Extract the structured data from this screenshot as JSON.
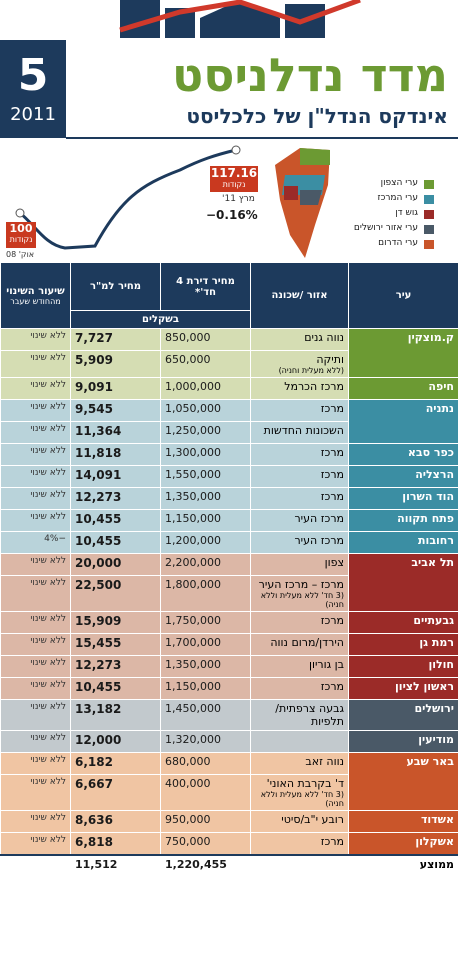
{
  "header": {
    "issue": "5",
    "year": "2011",
    "title": "מדד נדלניסט",
    "subtitle": "אינדקס הנדל\"ן של כלכליסט"
  },
  "index_chart": {
    "start": {
      "value": "100",
      "unit": "נקודות",
      "date": "אוק' 08"
    },
    "end": {
      "value": "117.16",
      "unit": "נקודות",
      "date": "מרץ 11'"
    },
    "change": "−0.16%"
  },
  "legend": [
    "ערי הצפון",
    "ערי המרכז",
    "גוש דן",
    "ערי אזור ירושלים",
    "ערי הדרום"
  ],
  "table": {
    "columns": {
      "city": "עיר",
      "area": "אזור /שכונה",
      "price": "מחיר דירת 4 חד'*",
      "sqm": "מחיר למ\"ר",
      "change": "שיעור השינוי",
      "change_note": "מהחודש שעבר"
    },
    "unit": "בשקלים",
    "groups": [
      {
        "cities": [
          {
            "name": "ק.מוצקין",
            "rows": [
              {
                "area": "נווה גנים",
                "price": "850,000",
                "sqm": "7,727",
                "change": "ללא שינוי"
              },
              {
                "area": "ותיקה",
                "area_note": "(ללא מעלית וחניה)",
                "price": "650,000",
                "sqm": "5,909",
                "change": "ללא שינוי"
              }
            ]
          },
          {
            "name": "חיפה",
            "rows": [
              {
                "area": "מרכז הכרמל",
                "price": "1,000,000",
                "sqm": "9,091",
                "change": "ללא שינוי"
              }
            ]
          }
        ]
      },
      {
        "cities": [
          {
            "name": "נתניה",
            "rows": [
              {
                "area": "מרכז",
                "price": "1,050,000",
                "sqm": "9,545",
                "change": "ללא שינוי"
              },
              {
                "area": "השכונות החדשות",
                "price": "1,250,000",
                "sqm": "11,364",
                "change": "ללא שינוי"
              }
            ]
          },
          {
            "name": "כפר סבא",
            "rows": [
              {
                "area": "מרכז",
                "price": "1,300,000",
                "sqm": "11,818",
                "change": "ללא שינוי"
              }
            ]
          },
          {
            "name": "הרצליה",
            "rows": [
              {
                "area": "מרכז",
                "price": "1,550,000",
                "sqm": "14,091",
                "change": "ללא שינוי"
              }
            ]
          },
          {
            "name": "הוד השרון",
            "rows": [
              {
                "area": "מרכז",
                "price": "1,350,000",
                "sqm": "12,273",
                "change": "ללא שינוי"
              }
            ]
          },
          {
            "name": "פתח תקווה",
            "rows": [
              {
                "area": "מרכז העיר",
                "price": "1,150,000",
                "sqm": "10,455",
                "change": "ללא שינוי"
              }
            ]
          },
          {
            "name": "רחובות",
            "rows": [
              {
                "area": "מרכז העיר",
                "price": "1,200,000",
                "sqm": "10,455",
                "change": "−4%"
              }
            ]
          }
        ]
      },
      {
        "cities": [
          {
            "name": "תל אביב",
            "rows": [
              {
                "area": "צפון",
                "price": "2,200,000",
                "sqm": "20,000",
                "change": "ללא שינוי"
              },
              {
                "area": "מרכז – מרכז העיר",
                "area_note": "(3 חד' ללא מעלית וללא חניה)",
                "price": "1,800,000",
                "sqm": "22,500",
                "change": "ללא שינוי"
              }
            ]
          },
          {
            "name": "גבעתיים",
            "rows": [
              {
                "area": "מרכז",
                "price": "1,750,000",
                "sqm": "15,909",
                "change": "ללא שינוי"
              }
            ]
          },
          {
            "name": "רמת גן",
            "rows": [
              {
                "area": "הירדן/מרום נווה",
                "price": "1,700,000",
                "sqm": "15,455",
                "change": "ללא שינוי"
              }
            ]
          },
          {
            "name": "חולון",
            "rows": [
              {
                "area": "בן גוריון",
                "price": "1,350,000",
                "sqm": "12,273",
                "change": "ללא שינוי"
              }
            ]
          },
          {
            "name": "ראשון לציון",
            "rows": [
              {
                "area": "מרכז",
                "price": "1,150,000",
                "sqm": "10,455",
                "change": "ללא שינוי"
              }
            ]
          }
        ]
      },
      {
        "cities": [
          {
            "name": "ירושלים",
            "rows": [
              {
                "area": "גבעה צרפתית/ תלפיות",
                "price": "1,450,000",
                "sqm": "13,182",
                "change": "ללא שינוי"
              }
            ]
          },
          {
            "name": "מודיעין",
            "rows": [
              {
                "price": "1,320,000",
                "sqm": "12,000",
                "change": "ללא שינוי"
              }
            ]
          }
        ]
      },
      {
        "cities": [
          {
            "name": "באר שבע",
            "rows": [
              {
                "area": "נווה זאב",
                "price": "680,000",
                "sqm": "6,182",
                "change": "ללא שינוי"
              },
              {
                "area": "ד' בקרבת האוני'",
                "area_note": "(3 חד' ללא מעלית וללא חניה)",
                "price": "400,000",
                "sqm": "6,667",
                "change": "ללא שינוי"
              }
            ]
          },
          {
            "name": "אשדוד",
            "rows": [
              {
                "area": "רובע י\"ב/סיטי",
                "price": "950,000",
                "sqm": "8,636",
                "change": "ללא שינוי"
              }
            ]
          },
          {
            "name": "אשקלון",
            "rows": [
              {
                "area": "מרכז",
                "price": "750,000",
                "sqm": "6,818",
                "change": "ללא שינוי"
              }
            ]
          }
        ]
      }
    ],
    "footer": {
      "label": "ממוצע",
      "price": "1,220,455",
      "sqm": "11,512"
    }
  }
}
